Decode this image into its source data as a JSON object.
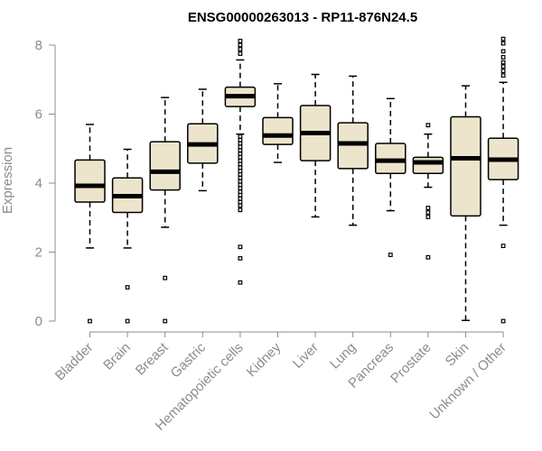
{
  "chart_data": {
    "type": "boxplot",
    "title": "ENSG00000263013 - RP11-876N24.5",
    "xlabel": "",
    "ylabel": "Expression",
    "ylim": [
      0,
      8
    ],
    "yticks": [
      0,
      2,
      4,
      6,
      8
    ],
    "categories": [
      "Bladder",
      "Brain",
      "Breast",
      "Gastric",
      "Hematopoietic cells",
      "Kidney",
      "Liver",
      "Lung",
      "Pancreas",
      "Prostate",
      "Skin",
      "Unknown / Other"
    ],
    "boxes": [
      {
        "name": "Bladder",
        "whisker_low": 2.12,
        "q1": 3.45,
        "median": 3.92,
        "q3": 4.67,
        "whisker_high": 5.7,
        "outliers": [
          0.0
        ]
      },
      {
        "name": "Brain",
        "whisker_low": 2.12,
        "q1": 3.15,
        "median": 3.62,
        "q3": 4.15,
        "whisker_high": 4.98,
        "outliers": [
          0.0,
          0.98
        ]
      },
      {
        "name": "Breast",
        "whisker_low": 2.72,
        "q1": 3.8,
        "median": 4.33,
        "q3": 5.2,
        "whisker_high": 6.48,
        "outliers": [
          0.0,
          1.25
        ]
      },
      {
        "name": "Gastric",
        "whisker_low": 3.78,
        "q1": 4.58,
        "median": 5.12,
        "q3": 5.72,
        "whisker_high": 6.72,
        "outliers": []
      },
      {
        "name": "Hematopoietic cells",
        "whisker_low": 5.42,
        "q1": 6.22,
        "median": 6.52,
        "q3": 6.78,
        "whisker_high": 7.57,
        "outliers": [
          8.12,
          8.0,
          7.88,
          7.75,
          5.35,
          5.25,
          5.15,
          5.05,
          4.95,
          4.85,
          4.75,
          4.65,
          4.55,
          4.45,
          4.35,
          4.25,
          4.15,
          4.05,
          3.95,
          3.85,
          3.75,
          3.65,
          3.55,
          3.45,
          3.35,
          3.22,
          2.15,
          1.82,
          1.12
        ]
      },
      {
        "name": "Kidney",
        "whisker_low": 4.6,
        "q1": 5.12,
        "median": 5.38,
        "q3": 5.9,
        "whisker_high": 6.88,
        "outliers": []
      },
      {
        "name": "Liver",
        "whisker_low": 3.02,
        "q1": 4.65,
        "median": 5.45,
        "q3": 6.25,
        "whisker_high": 7.15,
        "outliers": []
      },
      {
        "name": "Lung",
        "whisker_low": 2.78,
        "q1": 4.42,
        "median": 5.15,
        "q3": 5.75,
        "whisker_high": 7.1,
        "outliers": []
      },
      {
        "name": "Pancreas",
        "whisker_low": 3.2,
        "q1": 4.28,
        "median": 4.65,
        "q3": 5.15,
        "whisker_high": 6.45,
        "outliers": [
          1.92
        ]
      },
      {
        "name": "Prostate",
        "whisker_low": 3.88,
        "q1": 4.28,
        "median": 4.6,
        "q3": 4.75,
        "whisker_high": 5.42,
        "outliers": [
          5.68,
          3.28,
          3.15,
          3.02,
          1.85
        ]
      },
      {
        "name": "Skin",
        "whisker_low": 0.02,
        "q1": 3.05,
        "median": 4.72,
        "q3": 5.92,
        "whisker_high": 6.82,
        "outliers": []
      },
      {
        "name": "Unknown / Other",
        "whisker_low": 2.78,
        "q1": 4.1,
        "median": 4.68,
        "q3": 5.3,
        "whisker_high": 6.92,
        "outliers": [
          8.18,
          8.05,
          7.82,
          7.65,
          7.5,
          7.38,
          7.25,
          7.12,
          2.18,
          0.0
        ]
      }
    ]
  }
}
